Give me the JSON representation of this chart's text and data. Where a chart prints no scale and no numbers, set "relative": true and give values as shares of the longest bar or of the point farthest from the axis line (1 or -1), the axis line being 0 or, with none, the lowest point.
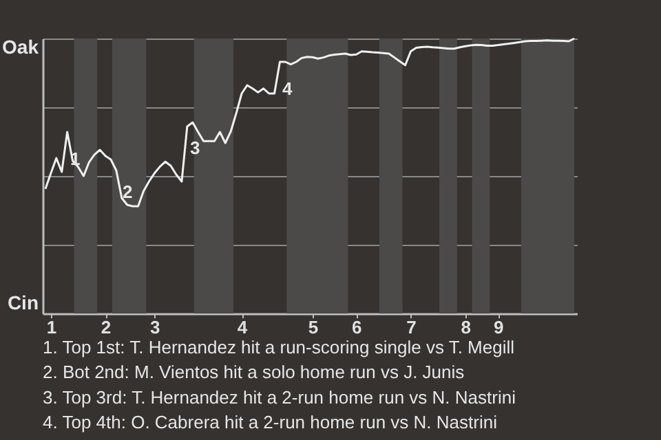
{
  "chart_data": {
    "type": "line",
    "relative": true,
    "categories": [
      null,
      "1",
      null,
      null,
      null,
      null,
      null,
      null,
      null,
      null,
      null,
      "2",
      null,
      null,
      null,
      null,
      null,
      null,
      null,
      null,
      "3",
      null,
      null,
      null,
      null,
      null,
      null,
      null,
      null,
      null,
      null,
      null,
      null,
      null,
      null,
      null,
      "4",
      null,
      null,
      null,
      null,
      null,
      null,
      null,
      null,
      null,
      null,
      null,
      null,
      "5",
      null,
      null,
      null,
      null,
      null,
      null,
      null,
      "6",
      null,
      null,
      null,
      null,
      null,
      null,
      null,
      null,
      null,
      "7",
      null,
      null,
      null,
      null,
      null,
      null,
      null,
      null,
      null,
      "8",
      null,
      null,
      null,
      null,
      null,
      "9",
      null,
      null,
      null,
      null,
      null,
      null,
      null,
      null,
      null,
      null,
      null,
      null,
      null,
      null
    ],
    "series": [
      {
        "color": "#f0f0f0",
        "values": [
          0.453,
          0.51,
          0.565,
          0.515,
          0.66,
          0.555,
          0.533,
          0.5,
          0.55,
          0.578,
          0.595,
          0.573,
          0.56,
          0.52,
          0.42,
          0.395,
          0.39,
          0.39,
          0.445,
          0.48,
          0.51,
          0.534,
          0.552,
          0.537,
          0.505,
          0.48,
          0.68,
          0.695,
          0.66,
          0.627,
          0.627,
          0.627,
          0.66,
          0.62,
          0.662,
          0.728,
          0.8,
          0.83,
          0.818,
          0.804,
          0.818,
          0.8,
          0.8,
          0.915,
          0.915,
          0.906,
          0.915,
          0.929,
          0.933,
          0.932,
          0.927,
          0.931,
          0.938,
          0.941,
          0.943,
          0.945,
          0.94,
          0.942,
          0.953,
          0.952,
          0.95,
          0.949,
          0.947,
          0.945,
          0.931,
          0.917,
          0.903,
          0.953,
          0.966,
          0.969,
          0.97,
          0.968,
          0.967,
          0.965,
          0.963,
          0.963,
          0.968,
          0.972,
          0.975,
          0.977,
          0.976,
          0.974,
          0.974,
          0.976,
          0.979,
          0.981,
          0.984,
          0.987,
          0.99,
          0.991,
          0.991,
          0.992,
          0.993,
          0.992,
          0.992,
          0.991,
          0.99,
          1
        ]
      }
    ],
    "grid": "y",
    "annotations": [
      "Oak",
      "Cin",
      "1",
      "2",
      "3",
      "4",
      "1. Top 1st: T. Hernandez hit a run-scoring single vs T. Megill",
      "2. Bot 2nd: M. Vientos hit a solo home run vs J. Junis",
      "3. Top 3rd: T. Hernandez hit a 2-run home run vs N. Nastrini",
      "4. Top 4th: O. Cabrera hit a 2-run home run vs N. Nastrini"
    ]
  }
}
